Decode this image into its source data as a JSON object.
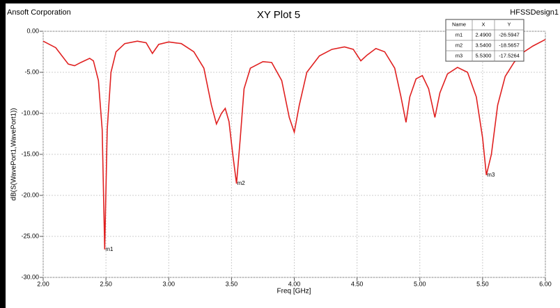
{
  "chart_data": {
    "type": "line",
    "title": "XY Plot 5",
    "corner_left": "Ansoft Corporation",
    "corner_right": "HFSSDesign1",
    "x_label": "Freq [GHz]",
    "y_label": "dB(S(WavePort1,WavePort1))",
    "xlim": [
      2,
      6
    ],
    "ylim": [
      -30,
      0
    ],
    "xticks": [
      {
        "value": 2,
        "label": "2.00"
      },
      {
        "value": 2.5,
        "label": "2.50"
      },
      {
        "value": 3,
        "label": "3.00"
      },
      {
        "value": 3.5,
        "label": "3.50"
      },
      {
        "value": 4,
        "label": "4.00"
      },
      {
        "value": 4.5,
        "label": "4.50"
      },
      {
        "value": 5,
        "label": "5.00"
      },
      {
        "value": 5.5,
        "label": "5.50"
      },
      {
        "value": 6,
        "label": "6.00"
      }
    ],
    "yticks": [
      {
        "value": 0,
        "label": "0.00"
      },
      {
        "value": -5,
        "label": "-5.00"
      },
      {
        "value": -10,
        "label": "-10.00"
      },
      {
        "value": -15,
        "label": "-15.00"
      },
      {
        "value": -20,
        "label": "-20.00"
      },
      {
        "value": -25,
        "label": "-25.00"
      },
      {
        "value": -30,
        "label": "-30.00"
      }
    ],
    "grid": true,
    "series": [
      {
        "color": "#e02020",
        "x": [
          2.0,
          2.1,
          2.2,
          2.25,
          2.3,
          2.37,
          2.4,
          2.44,
          2.47,
          2.49,
          2.51,
          2.54,
          2.58,
          2.65,
          2.75,
          2.82,
          2.87,
          2.92,
          3.0,
          3.1,
          3.2,
          3.28,
          3.34,
          3.38,
          3.42,
          3.45,
          3.48,
          3.51,
          3.54,
          3.57,
          3.6,
          3.65,
          3.75,
          3.82,
          3.9,
          3.96,
          4.0,
          4.04,
          4.1,
          4.2,
          4.3,
          4.4,
          4.47,
          4.53,
          4.58,
          4.65,
          4.72,
          4.8,
          4.85,
          4.89,
          4.92,
          4.97,
          5.02,
          5.07,
          5.12,
          5.16,
          5.22,
          5.3,
          5.38,
          5.45,
          5.5,
          5.53,
          5.57,
          5.62,
          5.68,
          5.75,
          5.82,
          5.9,
          6.0
        ],
        "values": [
          -1.2,
          -2.0,
          -4.0,
          -4.2,
          -3.8,
          -3.3,
          -3.6,
          -6,
          -12,
          -26.59,
          -12,
          -5,
          -2.5,
          -1.5,
          -1.2,
          -1.4,
          -2.7,
          -1.6,
          -1.3,
          -1.5,
          -2.5,
          -4.5,
          -9,
          -11.3,
          -10,
          -9.4,
          -11,
          -15,
          -18.57,
          -13,
          -7,
          -4.5,
          -3.7,
          -3.8,
          -6,
          -10.5,
          -12.3,
          -9,
          -5,
          -3,
          -2.2,
          -1.9,
          -2.2,
          -3.6,
          -2.9,
          -2.1,
          -2.5,
          -4.5,
          -8,
          -11.1,
          -8,
          -5.8,
          -5.4,
          -7,
          -10.5,
          -7.5,
          -5.2,
          -4.4,
          -5,
          -8,
          -13,
          -17.53,
          -15,
          -9,
          -5.5,
          -3.8,
          -2.6,
          -1.8,
          -1.0
        ]
      }
    ],
    "marker_table": {
      "columns": [
        "Name",
        "X",
        "Y"
      ],
      "rows": [
        [
          "m1",
          "2.4900",
          "-26.5947"
        ],
        [
          "m2",
          "3.5400",
          "-18.5657"
        ],
        [
          "m3",
          "5.5300",
          "-17.5264"
        ]
      ]
    }
  }
}
